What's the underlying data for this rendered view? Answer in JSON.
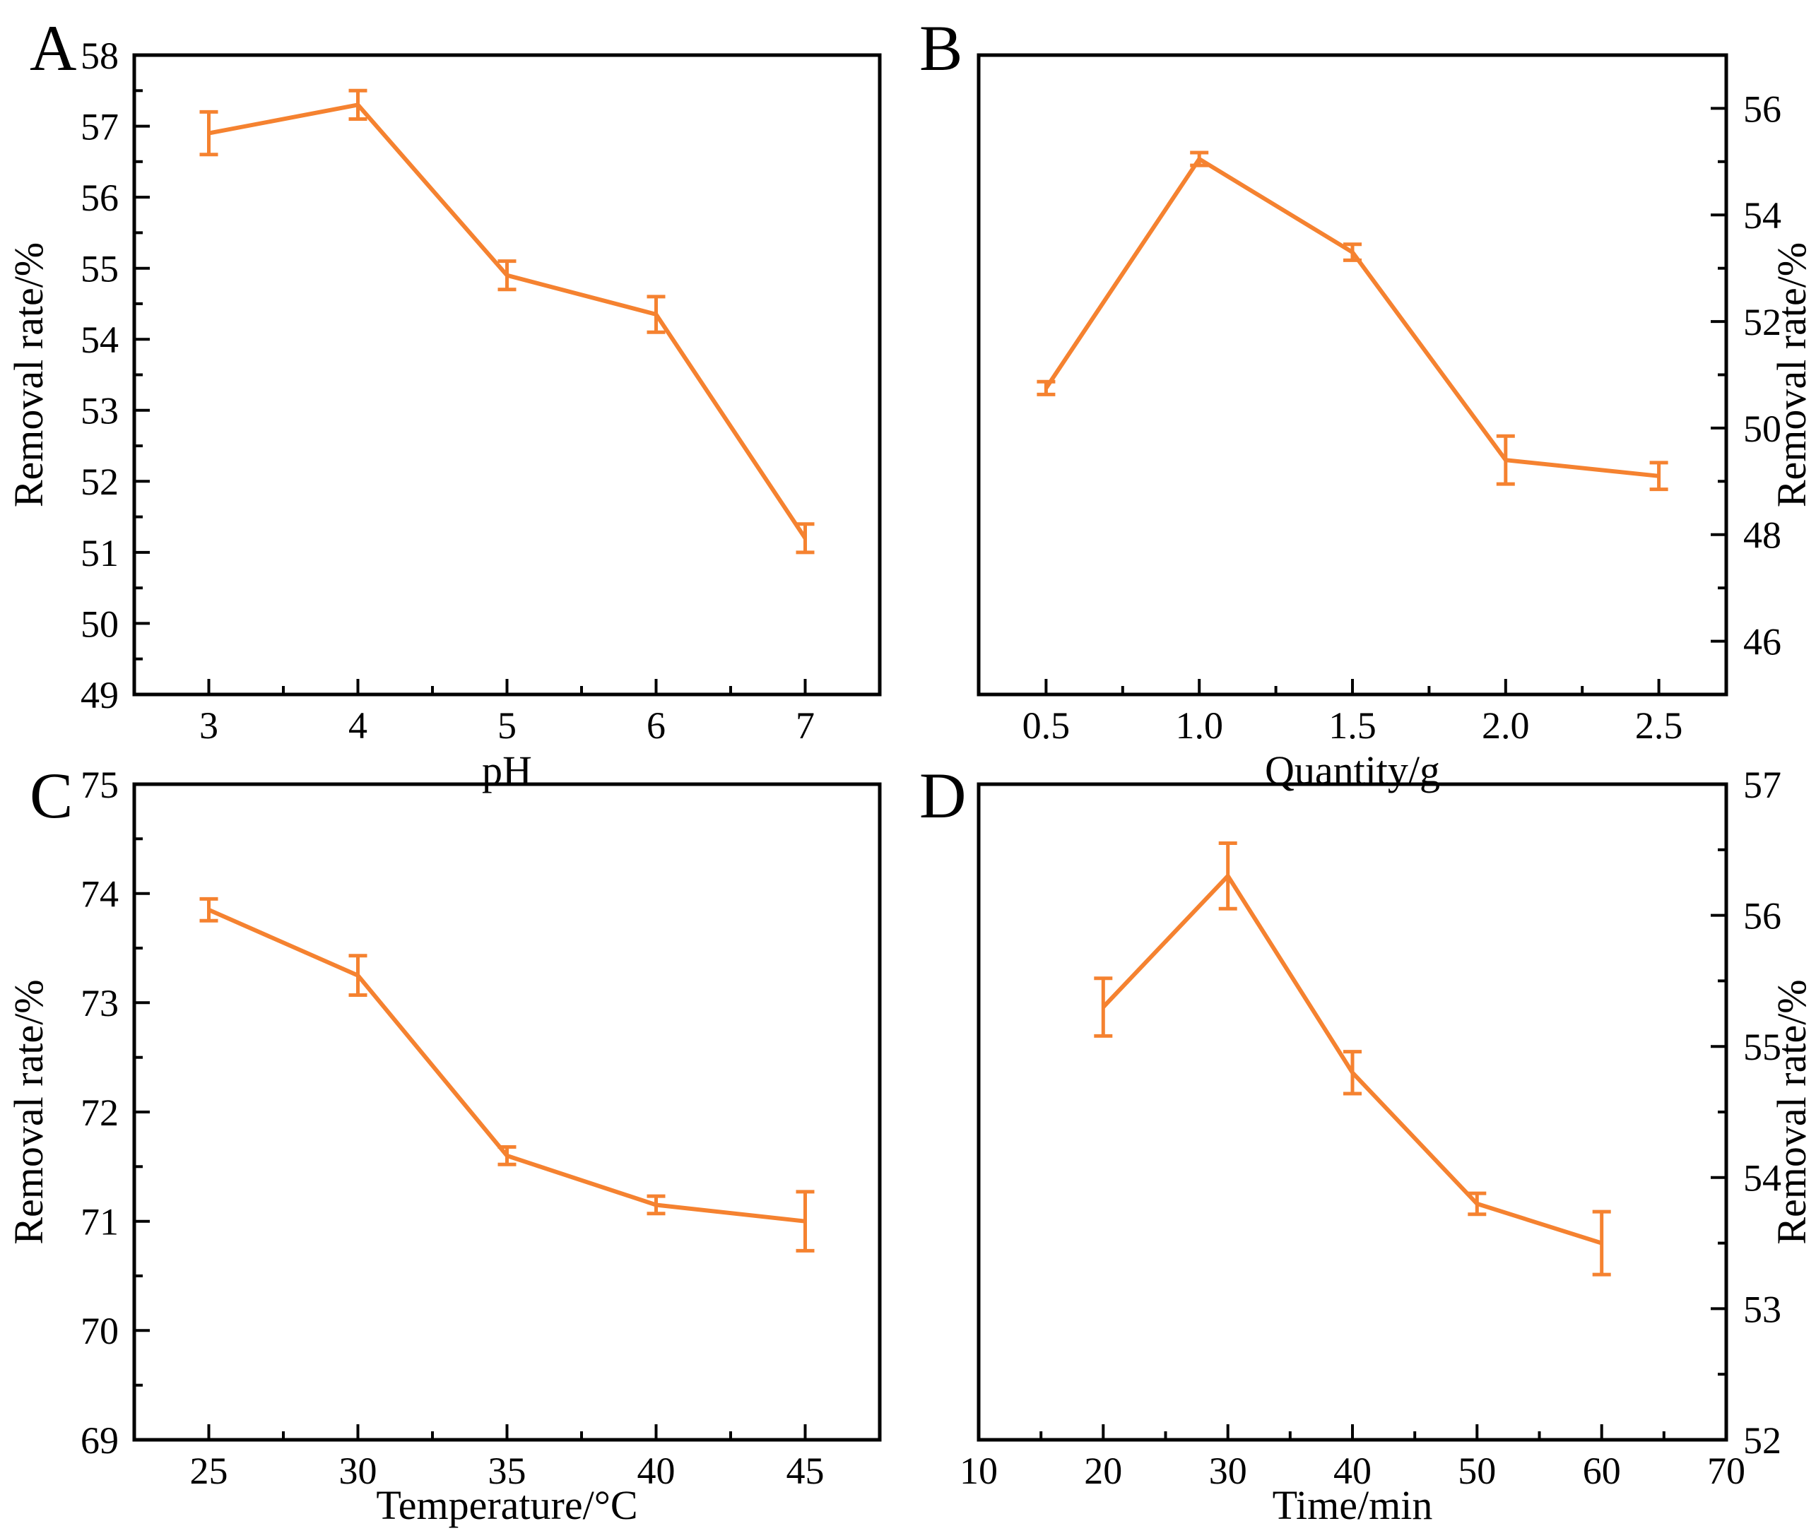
{
  "figure": {
    "background": "#ffffff",
    "axis_color": "#000000",
    "accent_color": "#F58230"
  },
  "chart_data": [
    {
      "panel": "A",
      "type": "line",
      "x": [
        3,
        4,
        5,
        6,
        7
      ],
      "y": [
        56.9,
        57.3,
        54.9,
        54.35,
        51.2
      ],
      "yerr": [
        0.3,
        0.2,
        0.2,
        0.25,
        0.2
      ],
      "xlabel": "pH",
      "ylabel": "Removal rate/%",
      "ylabel_side": "left",
      "xlim": [
        2.5,
        7.5
      ],
      "ylim": [
        49,
        58
      ],
      "xticks": [
        3,
        4,
        5,
        6,
        7
      ],
      "xtick_labels": [
        "3",
        "4",
        "5",
        "6",
        "7"
      ],
      "xminor": [
        3.5,
        4.5,
        5.5,
        6.5
      ],
      "yticks": [
        49,
        50,
        51,
        52,
        53,
        54,
        55,
        56,
        57,
        58
      ],
      "ytick_labels": [
        "49",
        "50",
        "51",
        "52",
        "53",
        "54",
        "55",
        "56",
        "57",
        "58"
      ],
      "yminor": [
        49.5,
        50.5,
        51.5,
        52.5,
        53.5,
        54.5,
        55.5,
        56.5,
        57.5
      ],
      "grid": "off",
      "legend": "none",
      "color": "#F58230"
    },
    {
      "panel": "B",
      "type": "line",
      "x": [
        0.5,
        1.0,
        1.5,
        2.0,
        2.5
      ],
      "y": [
        50.75,
        55.05,
        53.3,
        49.4,
        49.1
      ],
      "yerr": [
        0.12,
        0.12,
        0.15,
        0.45,
        0.25
      ],
      "xlabel": "Quantity/g",
      "ylabel": "Removal rate/%",
      "ylabel_side": "right",
      "xlim": [
        0.28,
        2.72
      ],
      "ylim": [
        45,
        57
      ],
      "xticks": [
        0.5,
        1.0,
        1.5,
        2.0,
        2.5
      ],
      "xtick_labels": [
        "0.5",
        "1.0",
        "1.5",
        "2.0",
        "2.5"
      ],
      "xminor": [
        0.75,
        1.25,
        1.75,
        2.25
      ],
      "yticks": [
        46,
        48,
        50,
        52,
        54,
        56
      ],
      "ytick_labels": [
        "46",
        "48",
        "50",
        "52",
        "54",
        "56"
      ],
      "yminor": [
        47,
        49,
        51,
        53,
        55
      ],
      "grid": "off",
      "legend": "none",
      "color": "#F58230"
    },
    {
      "panel": "C",
      "type": "line",
      "x": [
        25,
        30,
        35,
        40,
        45
      ],
      "y": [
        73.85,
        73.25,
        71.6,
        71.15,
        71.0
      ],
      "yerr": [
        0.1,
        0.18,
        0.08,
        0.08,
        0.27
      ],
      "xlabel": "Temperature/°C",
      "ylabel": "Removal rate/%",
      "ylabel_side": "left",
      "xlim": [
        22.5,
        47.5
      ],
      "ylim": [
        69,
        75
      ],
      "xticks": [
        25,
        30,
        35,
        40,
        45
      ],
      "xtick_labels": [
        "25",
        "30",
        "35",
        "40",
        "45"
      ],
      "xminor": [
        27.5,
        32.5,
        37.5,
        42.5
      ],
      "yticks": [
        69,
        70,
        71,
        72,
        73,
        74,
        75
      ],
      "ytick_labels": [
        "69",
        "70",
        "71",
        "72",
        "73",
        "74",
        "75"
      ],
      "yminor": [
        69.5,
        70.5,
        71.5,
        72.5,
        73.5,
        74.5
      ],
      "grid": "off",
      "legend": "none",
      "color": "#F58230"
    },
    {
      "panel": "D",
      "type": "line",
      "x": [
        20,
        30,
        40,
        50,
        60
      ],
      "y": [
        55.3,
        56.3,
        54.8,
        53.8,
        53.5
      ],
      "yerr": [
        0.22,
        0.25,
        0.16,
        0.08,
        0.24
      ],
      "xlabel": "Time/min",
      "ylabel": "Removal rate/%",
      "ylabel_side": "right",
      "xlim": [
        10,
        70
      ],
      "ylim": [
        52,
        57
      ],
      "xticks": [
        10,
        20,
        30,
        40,
        50,
        60,
        70
      ],
      "xtick_labels": [
        "10",
        "20",
        "30",
        "40",
        "50",
        "60",
        "70"
      ],
      "xminor": [
        15,
        25,
        35,
        45,
        55,
        65
      ],
      "yticks": [
        52,
        53,
        54,
        55,
        56,
        57
      ],
      "ytick_labels": [
        "52",
        "53",
        "54",
        "55",
        "56",
        "57"
      ],
      "yminor": [
        52.5,
        53.5,
        54.5,
        55.5,
        56.5
      ],
      "grid": "off",
      "legend": "none",
      "color": "#F58230"
    }
  ]
}
